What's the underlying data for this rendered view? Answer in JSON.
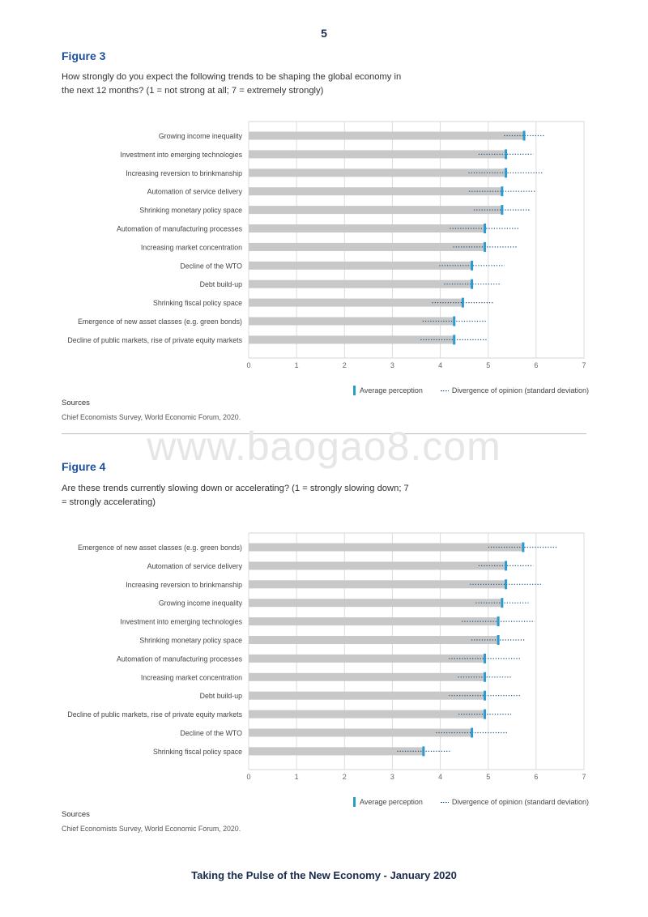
{
  "page_number": "5",
  "watermark": "www.baogao8.com",
  "footer": "Taking the Pulse of the New Economy - January 2020",
  "colors": {
    "bar": "#c8c8c9",
    "mean": "#2a9ad1",
    "deviation": "#1e4f7f",
    "title": "#1e4f9c"
  },
  "figures": [
    {
      "title": "Figure 3",
      "question": "How strongly do you expect the following trends to be shaping the global economy in the next 12 months? (1 = not strong at all; 7 = extremely strongly)",
      "legend": {
        "mean": "Average perception",
        "deviation": "Divergence of opinion (standard deviation)"
      },
      "sources_label": "Sources",
      "sources_text": "Chief Economists Survey, World Economic Forum, 2020."
    },
    {
      "title": "Figure 4",
      "question": "Are these trends currently slowing down or accelerating? (1 = strongly slowing down; 7 = strongly accelerating)",
      "legend": {
        "mean": "Average perception",
        "deviation": "Divergence of opinion (standard deviation)"
      },
      "sources_label": "Sources",
      "sources_text": "Chief Economists Survey, World Economic Forum, 2020."
    }
  ],
  "chart_data": [
    {
      "type": "bar",
      "orientation": "horizontal",
      "xlim": [
        0,
        7
      ],
      "xticks": [
        "0",
        "1",
        "2",
        "3",
        "4",
        "5",
        "6",
        "7"
      ],
      "grid": true,
      "legend_position": "bottom-right",
      "categories": [
        "Growing income inequality",
        "Investment into emerging technologies",
        "Increasing reversion to brinkmanship",
        "Automation of service delivery",
        "Shrinking monetary policy space",
        "Automation of manufacturing processes",
        "Increasing market concentration",
        "Decline of the WTO",
        "Debt build-up",
        "Shrinking fiscal policy space",
        "Emergence of new asset classes (e.g. green bonds)",
        "Decline of public markets, rise of private equity markets"
      ],
      "values": [
        5.75,
        5.37,
        5.37,
        5.29,
        5.29,
        4.93,
        4.93,
        4.66,
        4.66,
        4.47,
        4.29,
        4.29
      ],
      "std_dev": [
        0.42,
        0.57,
        0.78,
        0.69,
        0.59,
        0.73,
        0.66,
        0.68,
        0.58,
        0.64,
        0.66,
        0.7
      ]
    },
    {
      "type": "bar",
      "orientation": "horizontal",
      "xlim": [
        0,
        7
      ],
      "xticks": [
        "0",
        "1",
        "2",
        "3",
        "4",
        "5",
        "6",
        "7"
      ],
      "grid": true,
      "legend_position": "bottom-right",
      "categories": [
        "Emergence of new asset classes (e.g. green bonds)",
        "Automation of service delivery",
        "Increasing reversion to brinkmanship",
        "Growing income inequality",
        "Investment into emerging technologies",
        "Shrinking monetary policy space",
        "Automation of manufacturing processes",
        "Increasing market concentration",
        "Debt build-up",
        "Decline of public markets, rise of private equity markets",
        "Decline of the WTO",
        "Shrinking fiscal policy space"
      ],
      "values": [
        5.73,
        5.37,
        5.37,
        5.29,
        5.21,
        5.21,
        4.93,
        4.93,
        4.93,
        4.93,
        4.66,
        3.65
      ],
      "std_dev": [
        0.73,
        0.57,
        0.75,
        0.55,
        0.76,
        0.56,
        0.75,
        0.56,
        0.75,
        0.55,
        0.75,
        0.55
      ]
    }
  ]
}
